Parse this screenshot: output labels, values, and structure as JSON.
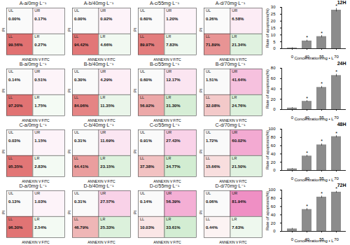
{
  "chart_data": [
    {
      "type": "quadrant",
      "title": "A-a/0mg·L⁻¹",
      "x_label": "ANNEXIN V FITC",
      "y_label": "PI",
      "quadrant_labels": [
        "UL",
        "UR",
        "LL",
        "LR"
      ],
      "values": [
        0.0,
        0.17,
        99.56,
        0.27
      ],
      "value_labels": [
        "0.00%",
        "0.17%",
        "99.56%",
        "0.27%"
      ],
      "colors": [
        "#9e9e9e",
        "#e0208a",
        "#cc1010",
        "#46b446"
      ]
    },
    {
      "type": "quadrant",
      "title": "A-b/40mg·L⁻¹",
      "x_label": "ANNEXIN V FITC",
      "y_label": "PI",
      "quadrant_labels": [
        "UL",
        "UR",
        "LL",
        "LR"
      ],
      "values": [
        0.0,
        0.92,
        94.42,
        4.66
      ],
      "value_labels": [
        "0.00%",
        "0.92%",
        "94.42%",
        "4.66%"
      ],
      "colors": [
        "#9e9e9e",
        "#e0208a",
        "#cc1010",
        "#46b446"
      ]
    },
    {
      "type": "quadrant",
      "title": "A-c/55mg·L⁻¹",
      "x_label": "ANNEXIN V FITC",
      "y_label": "PI",
      "quadrant_labels": [
        "UL",
        "UR",
        "LL",
        "LR"
      ],
      "values": [
        0.6,
        1.2,
        89.97,
        7.83
      ],
      "value_labels": [
        "0.60%",
        "1.20%",
        "89.97%",
        "7.83%"
      ],
      "colors": [
        "#9e9e9e",
        "#e0208a",
        "#cc1010",
        "#46b446"
      ]
    },
    {
      "type": "quadrant",
      "title": "A-d/70mg·L⁻¹",
      "x_label": "ANNEXIN V FITC",
      "y_label": "PI",
      "quadrant_labels": [
        "UL",
        "UR",
        "LL",
        "LR"
      ],
      "values": [
        0.26,
        6.58,
        71.89,
        21.34
      ],
      "value_labels": [
        "0.26%",
        "6.58%",
        "71.89%",
        "21.34%"
      ],
      "colors": [
        "#9e9e9e",
        "#e0208a",
        "#cc1010",
        "#46b446"
      ]
    },
    {
      "type": "quadrant",
      "title": "B-a/0mg·L⁻¹",
      "x_label": "ANNEXIN V FITC",
      "y_label": "PI",
      "quadrant_labels": [
        "UL",
        "UR",
        "LL",
        "LR"
      ],
      "values": [
        0.14,
        0.51,
        97.2,
        1.75
      ],
      "value_labels": [
        "0.14%",
        "0.51%",
        "97.20%",
        "1.75%"
      ],
      "colors": [
        "#9e9e9e",
        "#e0208a",
        "#cc1010",
        "#46b446"
      ]
    },
    {
      "type": "quadrant",
      "title": "B-b/40mg·L⁻¹",
      "x_label": "ANNEXIN V FITC",
      "y_label": "PI",
      "quadrant_labels": [
        "UL",
        "UR",
        "LL",
        "LR"
      ],
      "values": [
        0.3,
        4.29,
        84.06,
        11.35
      ],
      "value_labels": [
        "0.30%",
        "4.29%",
        "84.06%",
        "11.35%"
      ],
      "colors": [
        "#9e9e9e",
        "#e0208a",
        "#cc1010",
        "#46b446"
      ]
    },
    {
      "type": "quadrant",
      "title": "B-c/55mg·L⁻¹",
      "x_label": "ANNEXIN V FITC",
      "y_label": "PI",
      "quadrant_labels": [
        "UL",
        "UR",
        "LL",
        "LR"
      ],
      "values": [
        0.6,
        12.17,
        56.92,
        31.3
      ],
      "value_labels": [
        "0.60%",
        "12.17%",
        "56.92%",
        "31.30%"
      ],
      "colors": [
        "#9e9e9e",
        "#e0208a",
        "#cc1010",
        "#46b446"
      ]
    },
    {
      "type": "quadrant",
      "title": "B-d/70mg·L⁻¹",
      "x_label": "ANNEXIN V FITC",
      "y_label": "PI",
      "quadrant_labels": [
        "UL",
        "UR",
        "LL",
        "LR"
      ],
      "values": [
        1.51,
        41.64,
        32.08,
        24.76
      ],
      "value_labels": [
        "1.51%",
        "41.64%",
        "32.08%",
        "24.76%"
      ],
      "colors": [
        "#9e9e9e",
        "#e0208a",
        "#cc1010",
        "#46b446"
      ]
    },
    {
      "type": "quadrant",
      "title": "C-a/0mg·L⁻¹",
      "x_label": "ANNEXIN V FITC",
      "y_label": "PI",
      "quadrant_labels": [
        "UL",
        "UR",
        "LL",
        "LR"
      ],
      "values": [
        0.03,
        1.15,
        95.35,
        2.83
      ],
      "value_labels": [
        "0.03%",
        "1.15%",
        "95.35%",
        "2.83%"
      ],
      "colors": [
        "#9e9e9e",
        "#e0208a",
        "#cc1010",
        "#46b446"
      ]
    },
    {
      "type": "quadrant",
      "title": "C-b/40mg·L⁻¹",
      "x_label": "ANNEXIN V FITC",
      "y_label": "PI",
      "quadrant_labels": [
        "UL",
        "UR",
        "LL",
        "LR"
      ],
      "values": [
        0.31,
        11.69,
        64.41,
        23.15
      ],
      "value_labels": [
        "0.31%",
        "11.69%",
        "64.41%",
        "23.15%"
      ],
      "colors": [
        "#9e9e9e",
        "#e0208a",
        "#cc1010",
        "#46b446"
      ]
    },
    {
      "type": "quadrant",
      "title": "C-c/55mg·L⁻¹",
      "x_label": "ANNEXIN V FITC",
      "y_label": "PI",
      "quadrant_labels": [
        "UL",
        "UR",
        "LL",
        "LR"
      ],
      "values": [
        0.91,
        27.43,
        37.38,
        34.77
      ],
      "value_labels": [
        "0.91%",
        "27.43%",
        "37.38%",
        "34.77%"
      ],
      "colors": [
        "#9e9e9e",
        "#e0208a",
        "#cc1010",
        "#46b446"
      ]
    },
    {
      "type": "quadrant",
      "title": "C-d/70mg·L⁻¹",
      "x_label": "ANNEXIN V FITC",
      "y_label": "PI",
      "quadrant_labels": [
        "UL",
        "UR",
        "LL",
        "LR"
      ],
      "values": [
        1.72,
        60.02,
        15.66,
        21.5
      ],
      "value_labels": [
        "1.72%",
        "60.02%",
        "15.66%",
        "21.50%"
      ],
      "colors": [
        "#9e9e9e",
        "#e0208a",
        "#cc1010",
        "#46b446"
      ]
    },
    {
      "type": "quadrant",
      "title": "D-a/0mg·L⁻¹",
      "x_label": "ANNEXIN V FITC",
      "y_label": "PI",
      "quadrant_labels": [
        "UL",
        "UR",
        "LL",
        "LR"
      ],
      "values": [
        0.13,
        1.03,
        96.3,
        2.54
      ],
      "value_labels": [
        "0.13%",
        "1.03%",
        "96.30%",
        "2.54%"
      ],
      "colors": [
        "#9e9e9e",
        "#e0208a",
        "#cc1010",
        "#46b446"
      ]
    },
    {
      "type": "quadrant",
      "title": "D-b/40mg·L⁻¹",
      "x_label": "ANNEXIN V FITC",
      "y_label": "PI",
      "quadrant_labels": [
        "UL",
        "UR",
        "LL",
        "LR"
      ],
      "values": [
        0.31,
        27.57,
        46.79,
        25.33
      ],
      "value_labels": [
        "0.31%",
        "27.57%",
        "46.79%",
        "25.33%"
      ],
      "colors": [
        "#9e9e9e",
        "#e0208a",
        "#cc1010",
        "#46b446"
      ]
    },
    {
      "type": "quadrant",
      "title": "D-c/55mg·L⁻¹",
      "x_label": "ANNEXIN V FITC",
      "y_label": "PI",
      "quadrant_labels": [
        "UL",
        "UR",
        "LL",
        "LR"
      ],
      "values": [
        0.14,
        56.39,
        10.03,
        33.61
      ],
      "value_labels": [
        "0.14%",
        "56.39%",
        "10.03%",
        "33.61%"
      ],
      "colors": [
        "#9e9e9e",
        "#e0208a",
        "#cc1010",
        "#46b446"
      ]
    },
    {
      "type": "quadrant",
      "title": "D-d/70mg·L⁻¹",
      "x_label": "ANNEXIN V FITC",
      "y_label": "PI",
      "quadrant_labels": [
        "UL",
        "UR",
        "LL",
        "LR"
      ],
      "values": [
        0.06,
        81.94,
        0.44,
        7.63
      ],
      "value_labels": [
        "0.06%",
        "81.94%",
        "0.44%",
        "7.63%"
      ],
      "colors": [
        "#9e9e9e",
        "#e0208a",
        "#cc1010",
        "#46b446"
      ]
    },
    {
      "type": "bar",
      "title": "12H",
      "x_label": "Concentration/mg • L",
      "y_label": "Rate of apoptosis(%)",
      "categories": [
        "0",
        "40",
        "55",
        "70"
      ],
      "values": [
        0.5,
        5.6,
        8.8,
        28.0
      ],
      "errors": [
        0.3,
        0.6,
        0.8,
        1.2
      ],
      "annotations": [
        null,
        "*",
        "*",
        "*"
      ],
      "color": "#8c8c8c",
      "ylim": [
        0,
        30
      ],
      "yticks": [
        0,
        5,
        10,
        15,
        20,
        25,
        30
      ]
    },
    {
      "type": "bar",
      "title": "24H",
      "x_label": "Concentration/mg • L",
      "y_label": "Rate of apoptosis(%)",
      "categories": [
        "0",
        "40",
        "55",
        "70"
      ],
      "values": [
        3,
        16,
        43,
        66
      ],
      "errors": [
        1,
        1.5,
        2,
        2.5
      ],
      "annotations": [
        null,
        "*",
        "*",
        "*"
      ],
      "color": "#8c8c8c",
      "ylim": [
        0,
        80
      ],
      "yticks": [
        0,
        20,
        40,
        60,
        80
      ]
    },
    {
      "type": "bar",
      "title": "48H",
      "x_label": "Concentration/mg • L",
      "y_label": "Rate of apoptosis(%)",
      "categories": [
        "0",
        "40",
        "55",
        "70"
      ],
      "values": [
        4,
        35,
        62,
        82
      ],
      "errors": [
        1,
        2,
        2.5,
        2.5
      ],
      "annotations": [
        null,
        "*",
        "*",
        "*"
      ],
      "color": "#8c8c8c",
      "ylim": [
        0,
        100
      ],
      "yticks": [
        0,
        20,
        40,
        60,
        80,
        100
      ]
    },
    {
      "type": "bar",
      "title": "72H",
      "x_label": "Concentration/mg • L",
      "y_label": "Rate of apoptosis(%)",
      "categories": [
        "0",
        "40",
        "55",
        "70"
      ],
      "values": [
        6,
        53,
        83,
        95
      ],
      "errors": [
        1.5,
        2.5,
        2.5,
        2
      ],
      "annotations": [
        null,
        "*",
        "*",
        "*"
      ],
      "color": "#8c8c8c",
      "ylim": [
        0,
        100
      ],
      "yticks": [
        0,
        20,
        40,
        60,
        80,
        100
      ]
    }
  ]
}
